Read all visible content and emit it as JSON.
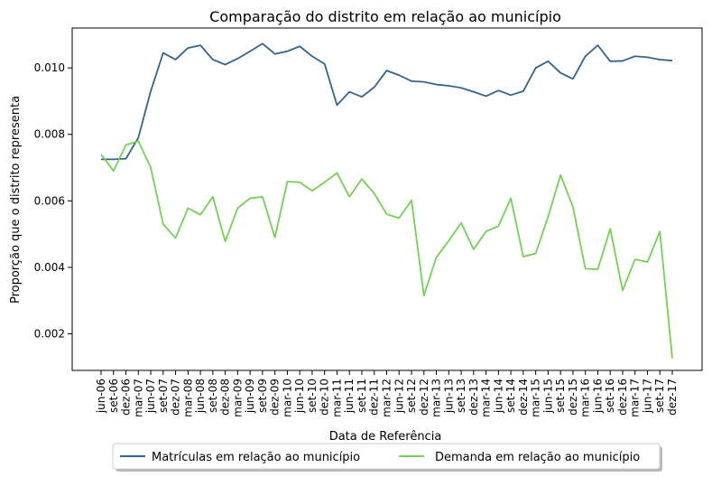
{
  "chart_data": {
    "type": "line",
    "title": "Comparação do distrito em relação ao município",
    "xlabel": "Data de Referência",
    "ylabel": "Proporção que o distrito representa",
    "ylim": [
      0.0009,
      0.0112
    ],
    "yticks": [
      0.002,
      0.004,
      0.006,
      0.008,
      0.01
    ],
    "ytick_labels": [
      "0.002",
      "0.004",
      "0.006",
      "0.008",
      "0.010"
    ],
    "grid": false,
    "legend_position": "bottom-center-outside",
    "categories": [
      "jun-06",
      "set-06",
      "dez-06",
      "mar-07",
      "jun-07",
      "set-07",
      "dez-07",
      "mar-08",
      "jun-08",
      "set-08",
      "dez-08",
      "mar-09",
      "jun-09",
      "set-09",
      "dez-09",
      "mar-10",
      "jun-10",
      "set-10",
      "dez-10",
      "mar-11",
      "jun-11",
      "set-11",
      "dez-11",
      "mar-12",
      "jun-12",
      "set-12",
      "dez-12",
      "mar-13",
      "jun-13",
      "set-13",
      "dez-13",
      "mar-14",
      "jun-14",
      "set-14",
      "dez-14",
      "mar-15",
      "jun-15",
      "set-15",
      "dez-15",
      "mar-16",
      "jun-16",
      "set-16",
      "dez-16",
      "mar-17",
      "jun-17",
      "set-17",
      "dez-17"
    ],
    "series": [
      {
        "name": "Matrículas em relação ao município",
        "color": "#33638d",
        "values": [
          0.00725,
          0.00725,
          0.00727,
          0.0079,
          0.0093,
          0.01045,
          0.01025,
          0.0106,
          0.01068,
          0.01025,
          0.0101,
          0.01028,
          0.0105,
          0.01073,
          0.01042,
          0.0105,
          0.01065,
          0.01035,
          0.01012,
          0.00888,
          0.00928,
          0.00913,
          0.00942,
          0.00992,
          0.00978,
          0.0096,
          0.00958,
          0.0095,
          0.00946,
          0.0094,
          0.00928,
          0.00915,
          0.00932,
          0.00918,
          0.0093,
          0.01,
          0.0102,
          0.00985,
          0.00967,
          0.01035,
          0.01068,
          0.0102,
          0.01021,
          0.01035,
          0.01032,
          0.01025,
          0.01022
        ]
      },
      {
        "name": "Demanda em relação ao município",
        "color": "#73d055",
        "values": [
          0.0074,
          0.0069,
          0.00768,
          0.0078,
          0.007,
          0.0053,
          0.00488,
          0.00578,
          0.00558,
          0.00612,
          0.00478,
          0.00578,
          0.00608,
          0.00612,
          0.0049,
          0.00658,
          0.00656,
          0.0063,
          0.00656,
          0.00684,
          0.00612,
          0.00666,
          0.00622,
          0.0056,
          0.00548,
          0.00602,
          0.00315,
          0.0043,
          0.0048,
          0.00534,
          0.00454,
          0.00508,
          0.00524,
          0.00608,
          0.00432,
          0.00442,
          0.00552,
          0.00678,
          0.00582,
          0.00396,
          0.00394,
          0.00516,
          0.0033,
          0.00424,
          0.00416,
          0.00508,
          0.00126
        ]
      }
    ]
  }
}
